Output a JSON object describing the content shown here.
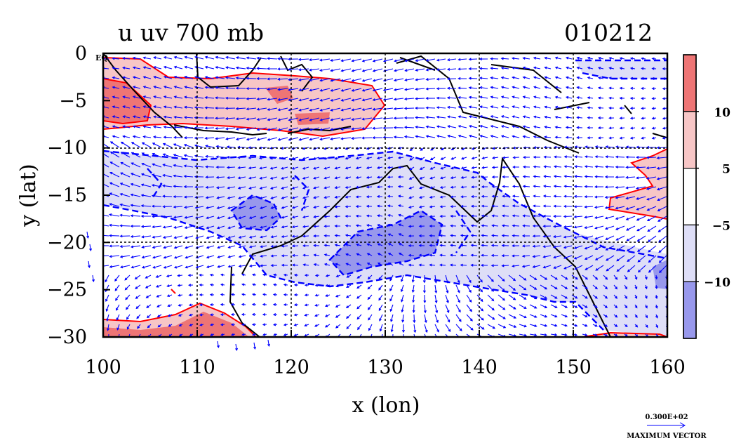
{
  "chart_data": {
    "type": "heatmap",
    "title": "u uv 700 mb",
    "date_label": "010212",
    "xlabel": "x (lon)",
    "ylabel": "y (lat)",
    "xlim": [
      100,
      160
    ],
    "ylim": [
      -30,
      0
    ],
    "x_ticks": [
      "100",
      "110",
      "120",
      "130",
      "140",
      "150",
      "160"
    ],
    "y_ticks": [
      "0",
      "−5",
      "−10",
      "−15",
      "−20",
      "−25",
      "−30"
    ],
    "equator_label": "EQ",
    "grid": true,
    "colorbar": {
      "placement": "right",
      "levels": [
        -10,
        -5,
        5,
        10
      ],
      "tick_labels": [
        "10",
        "5",
        "−5",
        "−10"
      ],
      "colors": [
        "#ee7575",
        "#f7c6c6",
        "#ffffff",
        "#dedef7",
        "#9898ec"
      ]
    },
    "vector_key": {
      "value_label": "0.300E+02",
      "caption": "MAXIMUM VECTOR"
    },
    "colors": {
      "positive_contour": "#ff0000",
      "negative_contour": "#0000ff",
      "vectors": "#0000ff",
      "coastline": "#000000"
    }
  }
}
